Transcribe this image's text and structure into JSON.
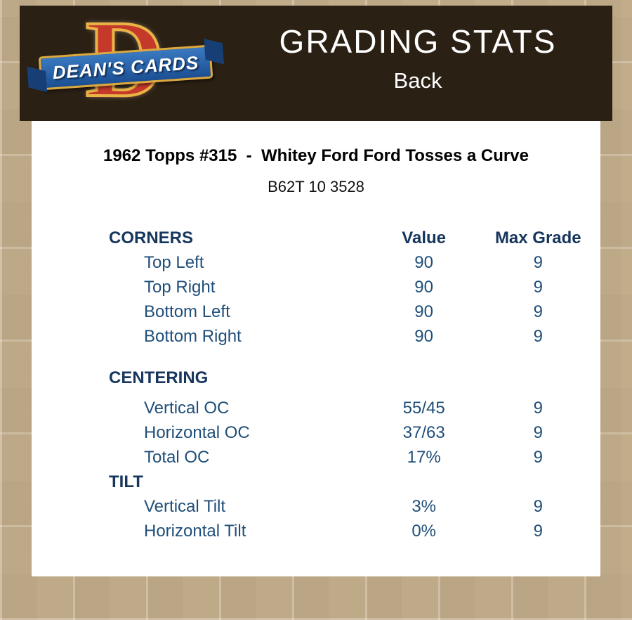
{
  "header": {
    "title": "GRADING STATS",
    "side_label": "Back",
    "logo": {
      "brand": "DEAN'S CARDS",
      "letter": "D"
    }
  },
  "report": {
    "card_title": "1962 Topps #315  -  Whitey Ford Ford Tosses a Curve",
    "card_code": "B62T 10 3528"
  },
  "table": {
    "value_header": "Value",
    "max_grade_header": "Max Grade",
    "sections": [
      {
        "name": "CORNERS",
        "rows": [
          {
            "label": "Top Left",
            "value": "90",
            "max_grade": "9"
          },
          {
            "label": "Top Right",
            "value": "90",
            "max_grade": "9"
          },
          {
            "label": "Bottom Left",
            "value": "90",
            "max_grade": "9"
          },
          {
            "label": "Bottom Right",
            "value": "90",
            "max_grade": "9"
          }
        ]
      },
      {
        "name": "CENTERING",
        "rows": [
          {
            "label": "Vertical OC",
            "value": "55/45",
            "max_grade": "9"
          },
          {
            "label": "Horizontal OC",
            "value": "37/63",
            "max_grade": "9"
          },
          {
            "label": "Total OC",
            "value": "17%",
            "max_grade": "9"
          }
        ]
      },
      {
        "name": "TILT",
        "rows": [
          {
            "label": "Vertical Tilt",
            "value": "3%",
            "max_grade": "9"
          },
          {
            "label": "Horizontal Tilt",
            "value": "0%",
            "max_grade": "9"
          }
        ]
      }
    ]
  },
  "colors": {
    "background_tan": "#c8b494",
    "header_bar": "#2b2014",
    "panel": "#ffffff",
    "navy_header_text": "#17365d",
    "navy_row_text": "#1f4e79",
    "logo_red": "#c5392b",
    "logo_gold": "#e9b445",
    "logo_blue": "#1b4f93"
  }
}
